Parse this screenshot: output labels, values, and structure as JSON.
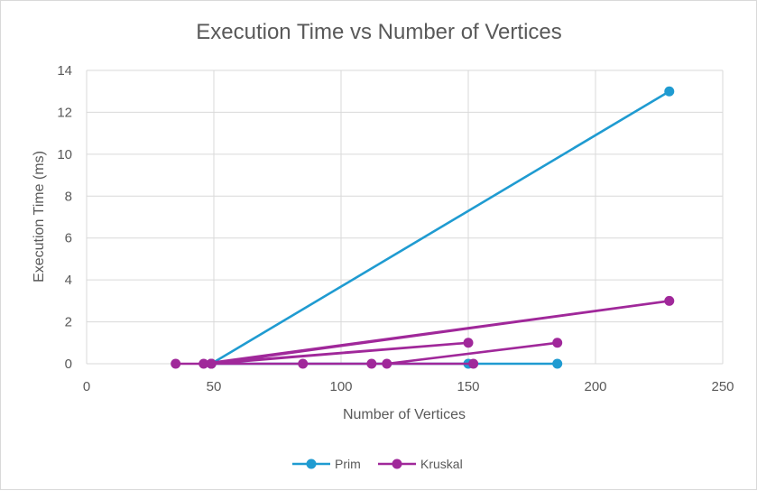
{
  "chart_data": {
    "type": "line",
    "title": "Execution Time vs Number of Vertices",
    "xlabel": "Number of Vertices",
    "ylabel": "Execution Time (ms)",
    "xlim": [
      0,
      250
    ],
    "ylim": [
      0,
      14
    ],
    "x_ticks": [
      "0",
      "50",
      "100",
      "150",
      "200",
      "250"
    ],
    "y_ticks": [
      "0",
      "2",
      "4",
      "6",
      "8",
      "10",
      "12",
      "14"
    ],
    "grid": true,
    "legend_position": "bottom",
    "series": [
      {
        "name": "Prim",
        "color": "#1f9bd1",
        "points": [
          [
            185,
            0
          ],
          [
            150,
            0
          ],
          [
            49,
            0
          ],
          [
            229,
            13
          ]
        ]
      },
      {
        "name": "Kruskal",
        "color": "#a0289a",
        "points": [
          [
            35,
            0
          ],
          [
            49,
            0
          ],
          [
            229,
            3
          ],
          [
            46,
            0
          ],
          [
            150,
            1
          ],
          [
            49,
            0
          ],
          [
            152,
            0
          ],
          [
            85,
            0
          ],
          [
            112,
            0
          ],
          [
            118,
            0
          ],
          [
            185,
            1
          ]
        ]
      }
    ]
  }
}
